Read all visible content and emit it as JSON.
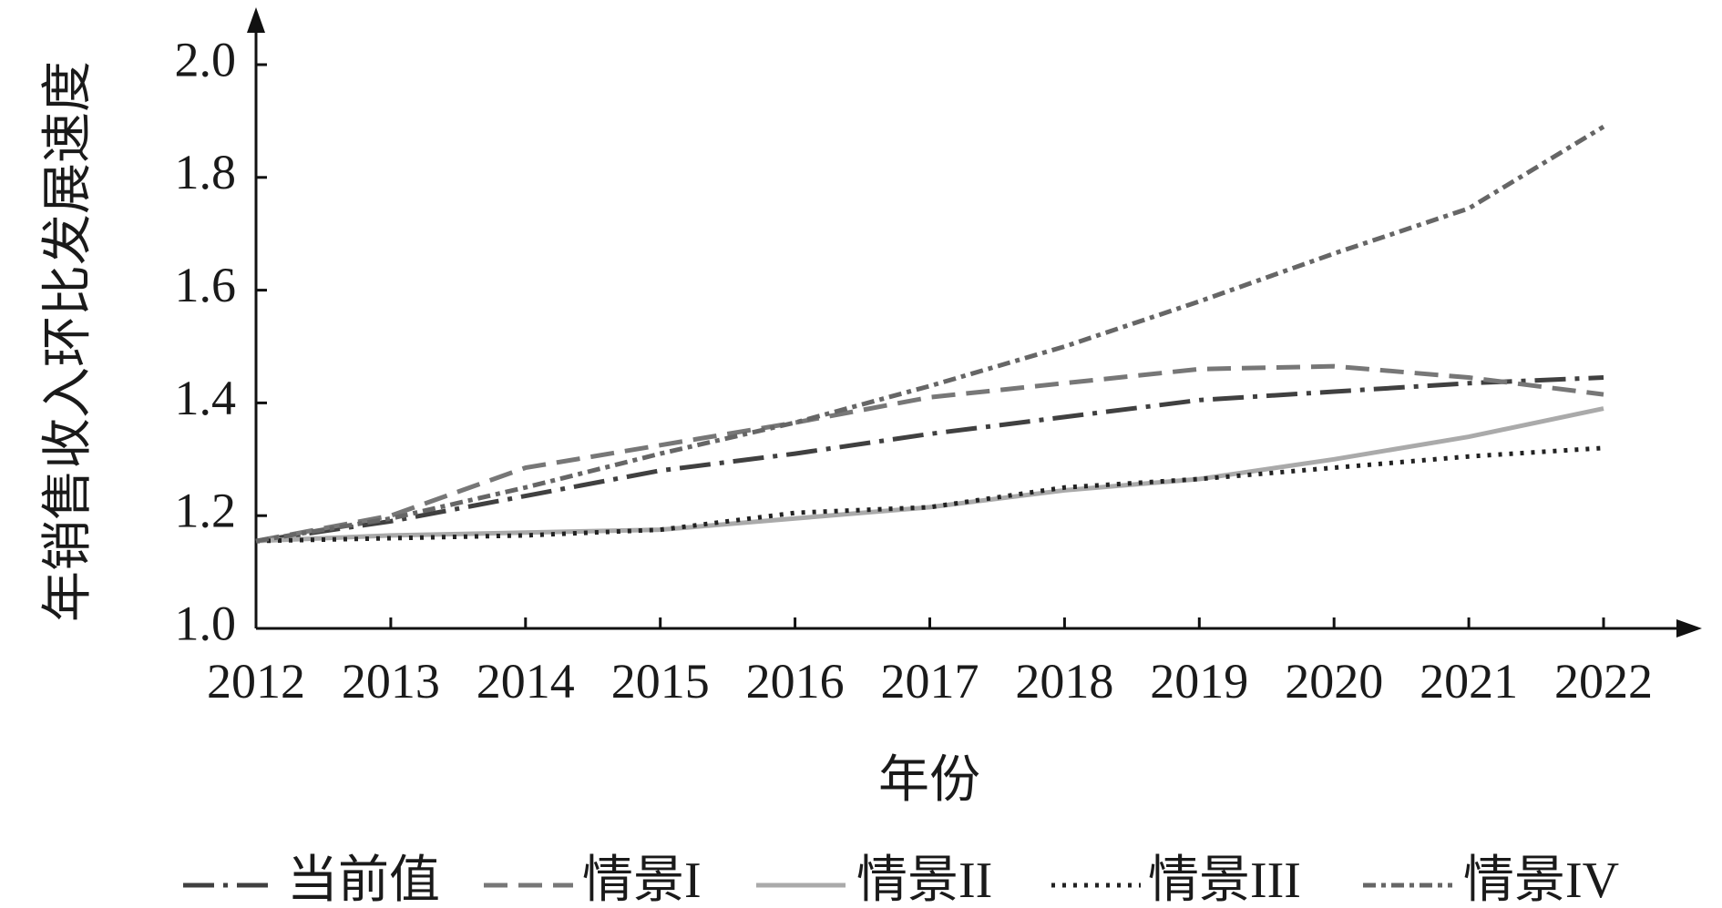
{
  "chart_data": {
    "type": "line",
    "x_label": "年份",
    "y_label": "年销售收入环比发展速度",
    "categories": [
      "2012",
      "2013",
      "2014",
      "2015",
      "2016",
      "2017",
      "2018",
      "2019",
      "2020",
      "2021",
      "2022"
    ],
    "ylim": [
      1.0,
      2.0
    ],
    "yticks": [
      {
        "value": 1.0,
        "label": "1.0"
      },
      {
        "value": 1.2,
        "label": "1.2"
      },
      {
        "value": 1.4,
        "label": "1.4"
      },
      {
        "value": 1.6,
        "label": "1.6"
      },
      {
        "value": 1.8,
        "label": "1.8"
      },
      {
        "value": 2.0,
        "label": "2.0"
      }
    ],
    "series": [
      {
        "name": "当前值",
        "color": "#404040",
        "dash": "34 10 5 10",
        "values": [
          1.155,
          1.19,
          1.235,
          1.28,
          1.31,
          1.345,
          1.375,
          1.405,
          1.42,
          1.435,
          1.445
        ]
      },
      {
        "name": "情景I",
        "color": "#777777",
        "dash": "26 12",
        "values": [
          1.155,
          1.2,
          1.285,
          1.325,
          1.365,
          1.41,
          1.435,
          1.46,
          1.465,
          1.445,
          1.415
        ]
      },
      {
        "name": "情景II",
        "color": "#aaaaaa",
        "dash": "none",
        "values": [
          1.155,
          1.165,
          1.17,
          1.175,
          1.195,
          1.215,
          1.245,
          1.265,
          1.3,
          1.34,
          1.39
        ]
      },
      {
        "name": "情景III",
        "color": "#222222",
        "dash": "4 8",
        "values": [
          1.155,
          1.16,
          1.165,
          1.175,
          1.205,
          1.215,
          1.25,
          1.265,
          1.285,
          1.305,
          1.32
        ]
      },
      {
        "name": "情景IV",
        "color": "#666666",
        "dash": "14 6 5 6",
        "values": [
          1.155,
          1.195,
          1.25,
          1.31,
          1.365,
          1.43,
          1.5,
          1.58,
          1.665,
          1.745,
          1.89
        ]
      }
    ]
  }
}
